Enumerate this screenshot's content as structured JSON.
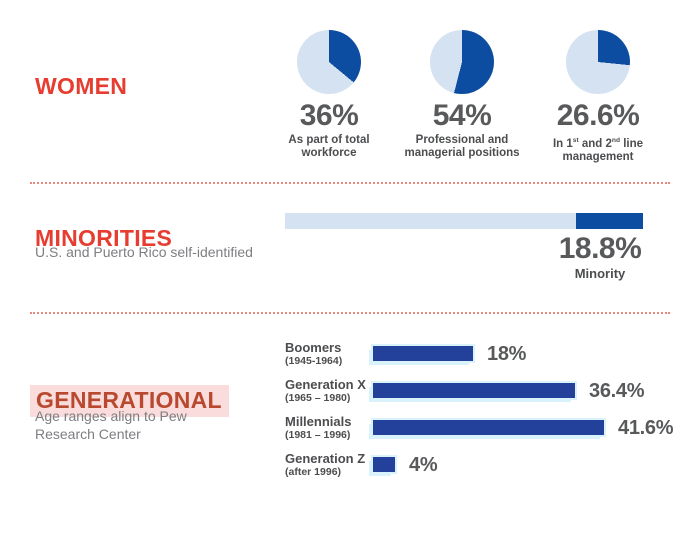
{
  "colors": {
    "red": "#E73C30",
    "generational_red": "#B8492F",
    "generational_highlight": "#F9DCDB",
    "dark_blue": "#0C4DA2",
    "bar_blue": "#23409A",
    "light_blue": "#D5E2F2",
    "halo": "#D9F2FB",
    "number_gray": "#58595B",
    "label_gray": "#4C4D4F",
    "subtitle_gray": "#7D7E81",
    "divider": "#E8887F"
  },
  "women": {
    "title": "WOMEN",
    "pies": [
      {
        "value": 36,
        "value_label": "36%",
        "caption_lines": [
          [
            {
              "t": "As part of total"
            }
          ],
          [
            {
              "t": "workforce"
            }
          ]
        ]
      },
      {
        "value": 54,
        "value_label": "54%",
        "caption_lines": [
          [
            {
              "t": "Professional and"
            }
          ],
          [
            {
              "t": "managerial positions"
            }
          ]
        ]
      },
      {
        "value": 26.6,
        "value_label": "26.6%",
        "caption_lines": [
          [
            {
              "t": "In 1"
            },
            {
              "t": "st",
              "sup": true
            },
            {
              "t": " and 2"
            },
            {
              "t": "nd",
              "sup": true
            },
            {
              "t": " line"
            }
          ],
          [
            {
              "t": "management"
            }
          ]
        ]
      }
    ]
  },
  "minorities": {
    "title": "MINORITIES",
    "subtitle": "U.S. and Puerto Rico self-identified",
    "bar": {
      "value": 18.8,
      "total": 100,
      "value_label": "18.8%",
      "caption": "Minority"
    }
  },
  "generational": {
    "title": "GENERATIONAL",
    "subtitle_lines": [
      "Age ranges align to Pew",
      "Research Center"
    ],
    "bars": [
      {
        "name": "Boomers",
        "range": "(1945-1964)",
        "value": 18,
        "value_label": "18%"
      },
      {
        "name": "Generation X",
        "range": "(1965 – 1980)",
        "value": 36.4,
        "value_label": "36.4%"
      },
      {
        "name": "Millennials",
        "range": "(1981 – 1996)",
        "value": 41.6,
        "value_label": "41.6%"
      },
      {
        "name": "Generation Z",
        "range": "(after 1996)",
        "value": 4,
        "value_label": "4%"
      }
    ]
  },
  "chart_data": [
    {
      "type": "pie",
      "section": "WOMEN",
      "label": "As part of total workforce",
      "slices": [
        "Women",
        "Other"
      ],
      "values": [
        36,
        64
      ],
      "colors": [
        "#0C4DA2",
        "#D5E2F2"
      ],
      "data_label": "36%"
    },
    {
      "type": "pie",
      "section": "WOMEN",
      "label": "Professional and managerial positions",
      "slices": [
        "Women",
        "Other"
      ],
      "values": [
        54,
        46
      ],
      "colors": [
        "#0C4DA2",
        "#D5E2F2"
      ],
      "data_label": "54%"
    },
    {
      "type": "pie",
      "section": "WOMEN",
      "label": "In 1st and 2nd line management",
      "slices": [
        "Women",
        "Other"
      ],
      "values": [
        26.6,
        73.4
      ],
      "colors": [
        "#0C4DA2",
        "#D5E2F2"
      ],
      "data_label": "26.6%"
    },
    {
      "type": "bar",
      "section": "MINORITIES",
      "subtitle": "U.S. and Puerto Rico self-identified",
      "orientation": "horizontal",
      "categories": [
        "Minority"
      ],
      "values": [
        18.8
      ],
      "xlim": [
        0,
        100
      ],
      "data_labels": [
        "18.8%"
      ],
      "notes": "single track bar, filled segment anchored at right end"
    },
    {
      "type": "bar",
      "section": "GENERATIONAL",
      "subtitle": "Age ranges align to Pew Research Center",
      "orientation": "horizontal",
      "categories": [
        "Boomers (1945-1964)",
        "Generation X (1965 – 1980)",
        "Millennials (1981 – 1996)",
        "Generation Z (after 1996)"
      ],
      "values": [
        18,
        36.4,
        41.6,
        4
      ],
      "data_labels": [
        "18%",
        "36.4%",
        "41.6%",
        "4%"
      ],
      "grid": false,
      "legend": false
    }
  ]
}
